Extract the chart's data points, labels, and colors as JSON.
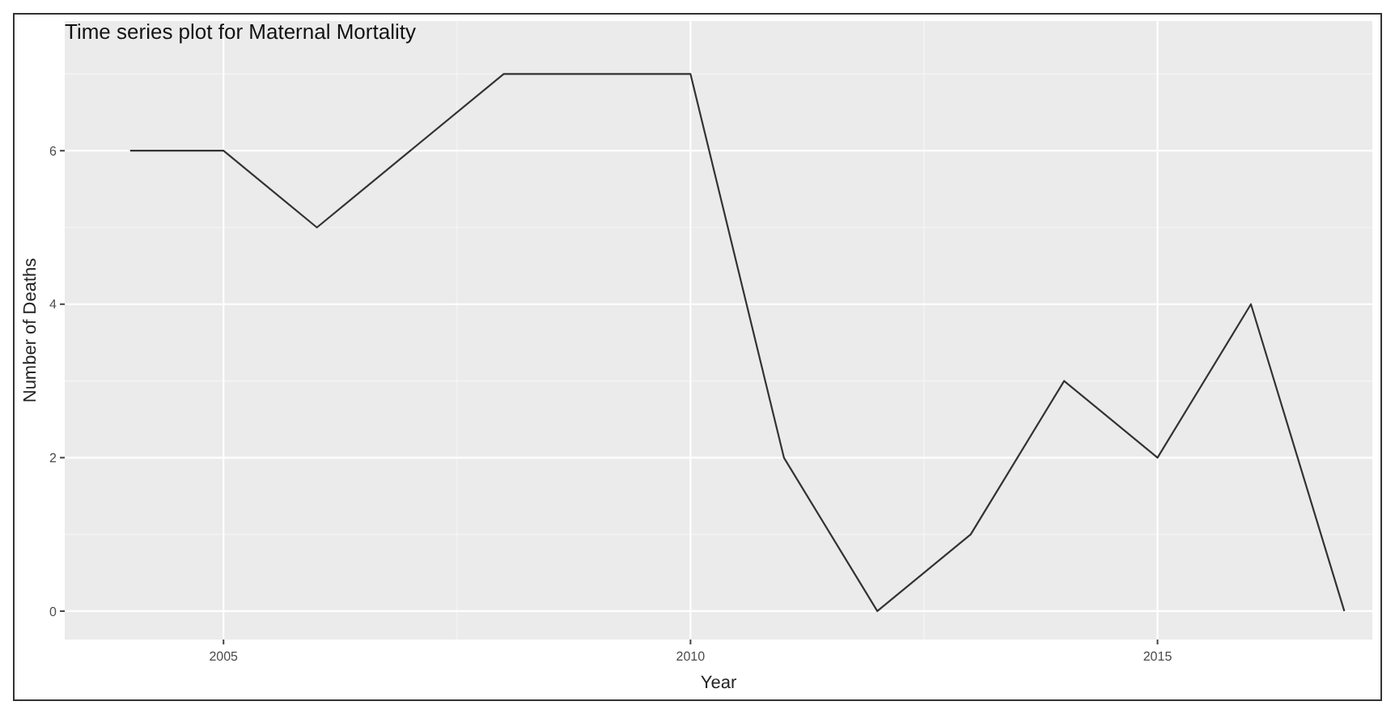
{
  "chart_data": {
    "type": "line",
    "title": "Time series plot for Maternal Mortality",
    "xlabel": "Year",
    "ylabel": "Number of Deaths",
    "x": [
      2004,
      2005,
      2006,
      2007,
      2008,
      2009,
      2010,
      2011,
      2012,
      2013,
      2014,
      2015,
      2016,
      2017
    ],
    "series": [
      {
        "color": "#333333",
        "values": [
          6,
          6,
          5,
          6,
          7,
          7,
          7,
          2,
          0,
          1,
          3,
          2,
          4,
          0
        ]
      }
    ],
    "xlim": [
      2003.3,
      2017.3
    ],
    "xticks": [
      2005,
      2010,
      2015
    ],
    "ylim": [
      -0.37,
      7.69
    ],
    "yticks": [
      0,
      2,
      4,
      6
    ],
    "grid": true,
    "marker": "none",
    "line_style": "solid"
  }
}
